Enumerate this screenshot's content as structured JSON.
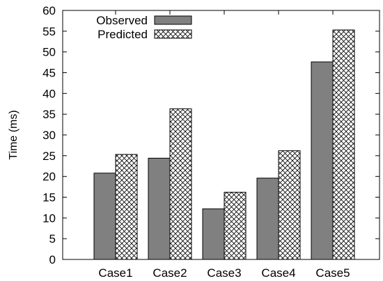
{
  "chart_data": {
    "type": "bar",
    "title": "",
    "xlabel": "",
    "ylabel": "Time (ms)",
    "ylim": [
      0,
      60
    ],
    "yticks": [
      0,
      5,
      10,
      15,
      20,
      25,
      30,
      35,
      40,
      45,
      50,
      55,
      60
    ],
    "categories": [
      "Case1",
      "Case2",
      "Case3",
      "Case4",
      "Case5"
    ],
    "series": [
      {
        "name": "Observed",
        "values": [
          20.8,
          24.4,
          12.2,
          19.6,
          47.6
        ],
        "color": "#808080",
        "pattern": "solid"
      },
      {
        "name": "Predicted",
        "values": [
          25.3,
          36.3,
          16.2,
          26.2,
          55.3
        ],
        "color": "#ffffff",
        "pattern": "crosshatch"
      }
    ],
    "legend_position": "top-left",
    "grid": false
  }
}
